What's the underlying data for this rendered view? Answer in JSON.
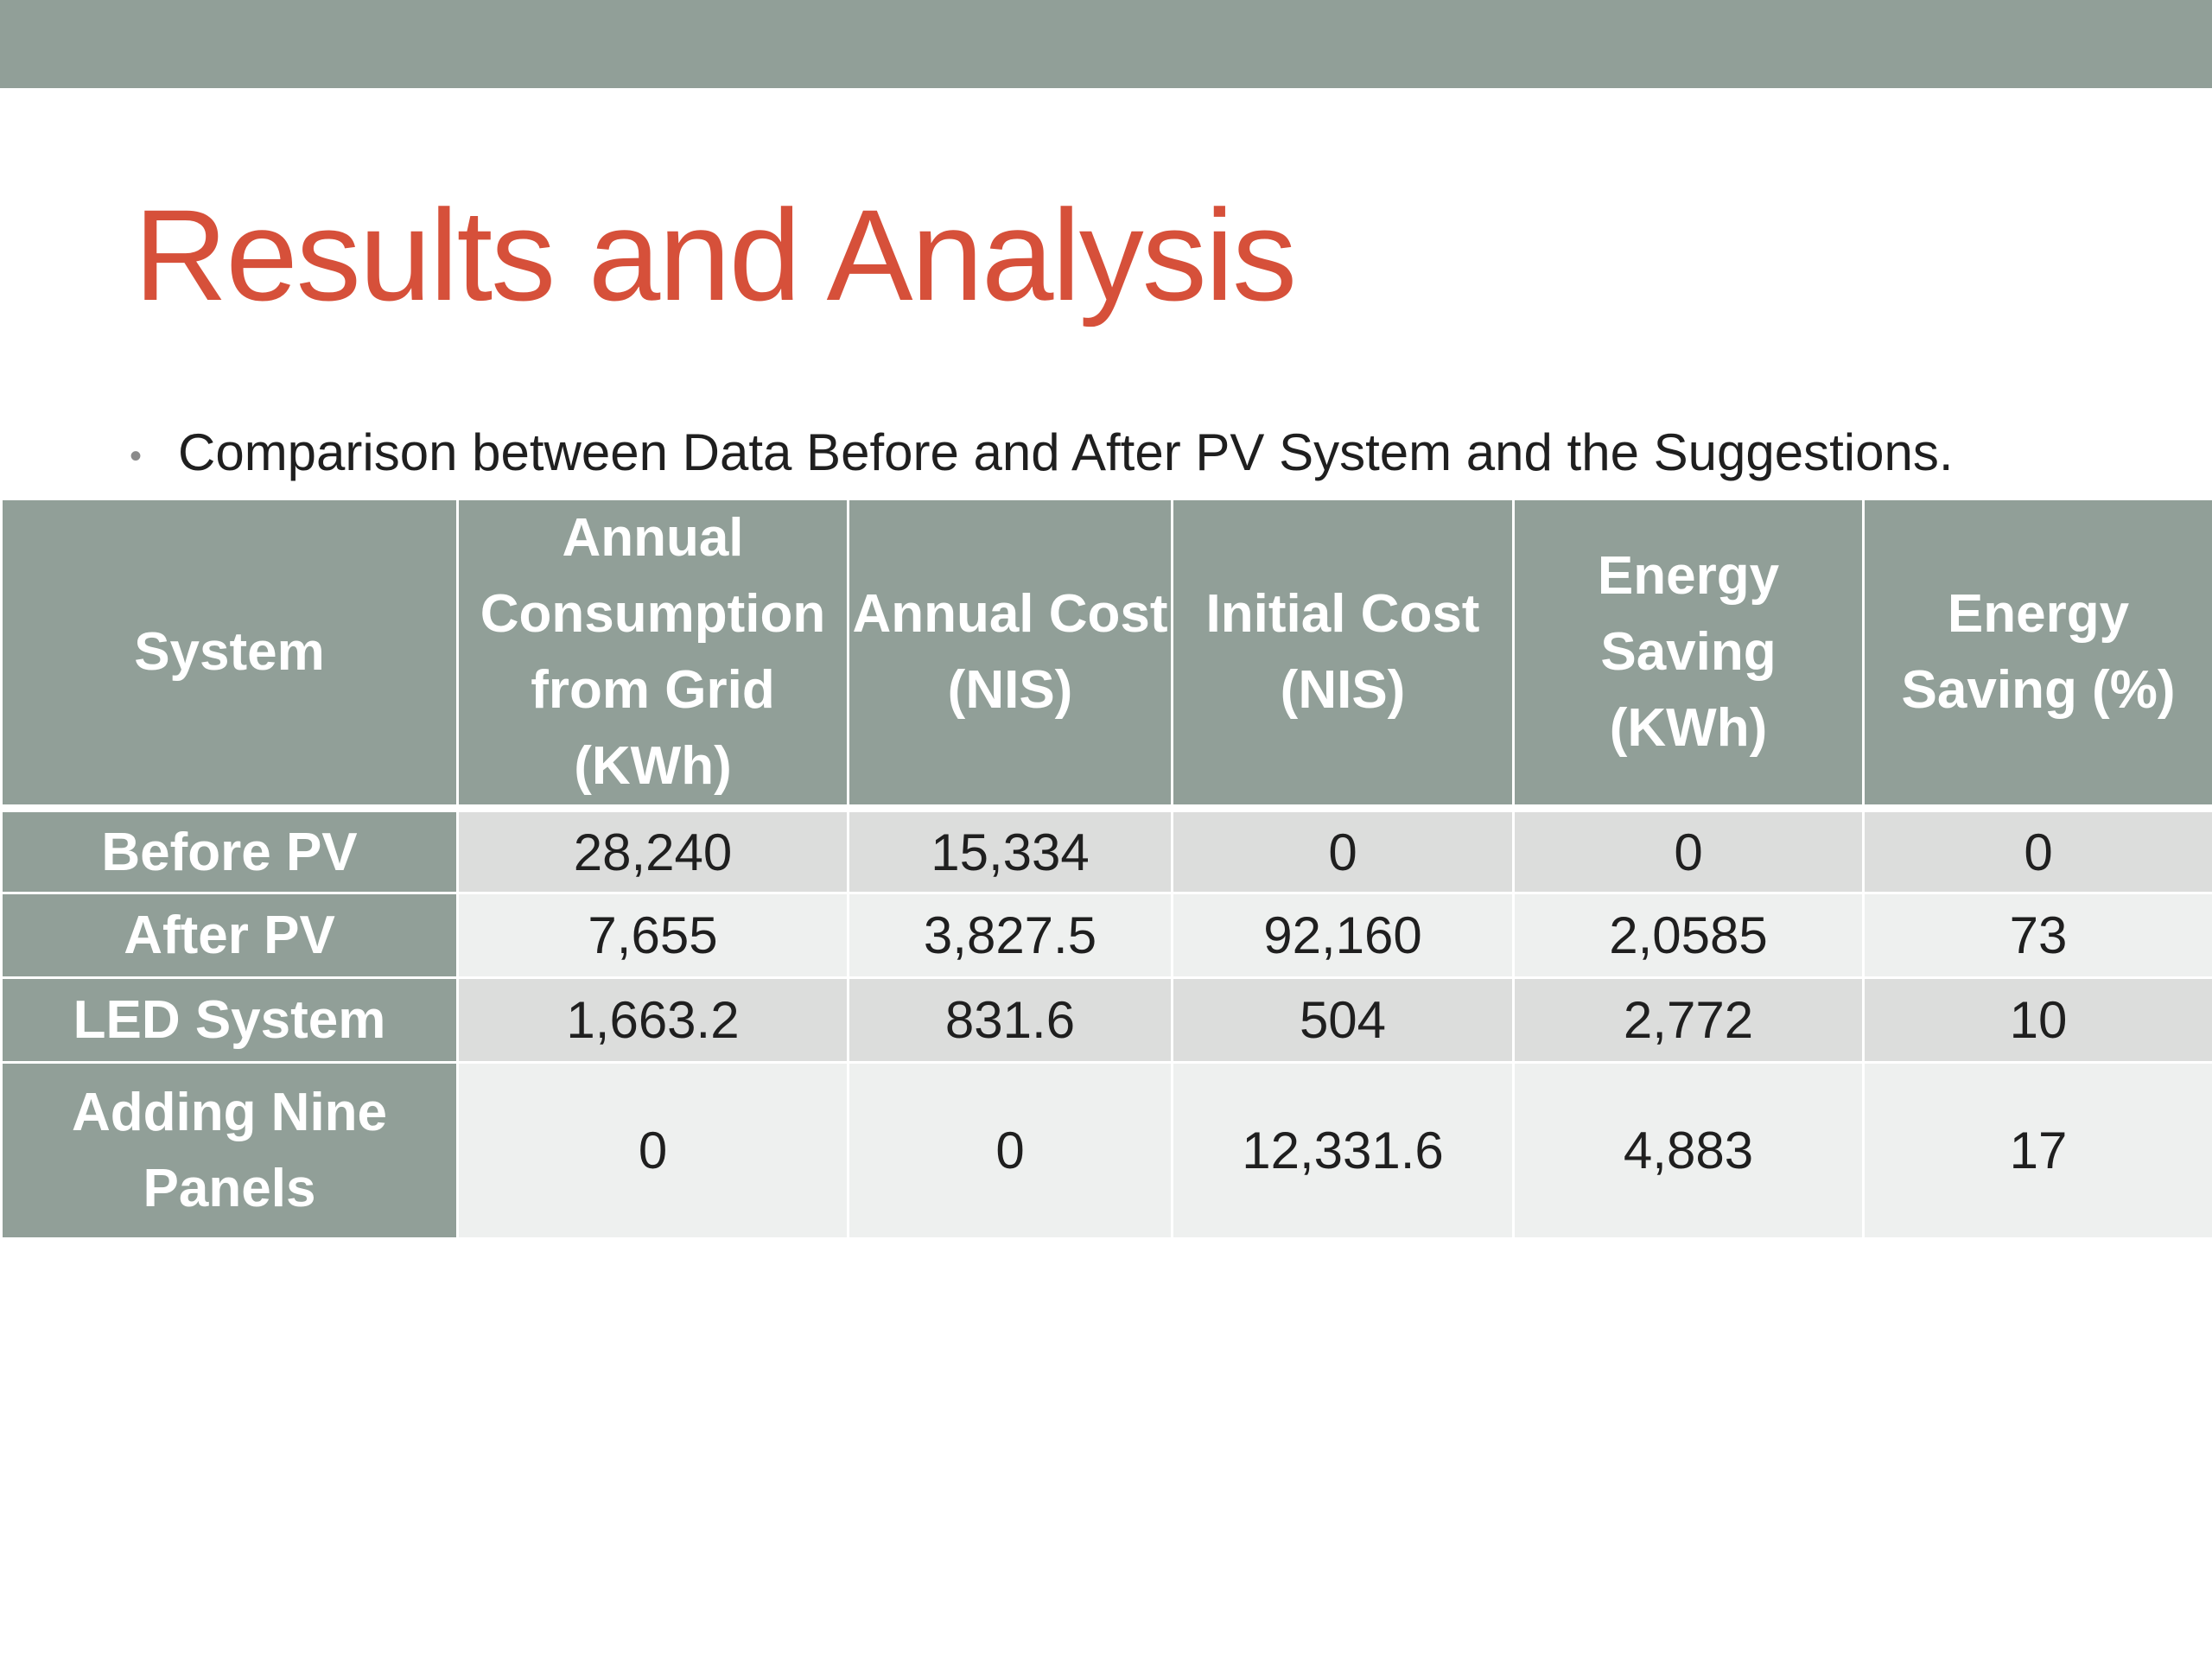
{
  "slide": {
    "title": "Results and Analysis",
    "bullet": "Comparison between Data Before and After PV System and the Suggestions."
  },
  "table": {
    "headers": [
      "System",
      "Annual Consumption from Grid (KWh)",
      "Annual Cost (NIS)",
      "Initial Cost (NIS)",
      "Energy Saving (KWh)",
      "Energy Saving (%)"
    ],
    "rows": [
      {
        "system": "Before PV",
        "consumption": "28,240",
        "annual_cost": "15,334",
        "initial_cost": "0",
        "saving_kwh": "0",
        "saving_pct": "0"
      },
      {
        "system": "After PV",
        "consumption": "7,655",
        "annual_cost": "3,827.5",
        "initial_cost": "92,160",
        "saving_kwh": "2,0585",
        "saving_pct": "73"
      },
      {
        "system": "LED System",
        "consumption": "1,663.2",
        "annual_cost": "831.6",
        "initial_cost": "504",
        "saving_kwh": "2,772",
        "saving_pct": "10"
      },
      {
        "system": "Adding Nine Panels",
        "consumption": "0",
        "annual_cost": "0",
        "initial_cost": "12,331.6",
        "saving_kwh": "4,883",
        "saving_pct": "17"
      }
    ]
  },
  "colors": {
    "header_bg": "#919f98",
    "title": "#d6503a",
    "row_odd": "#dcdddc",
    "row_even": "#eef0ef"
  }
}
